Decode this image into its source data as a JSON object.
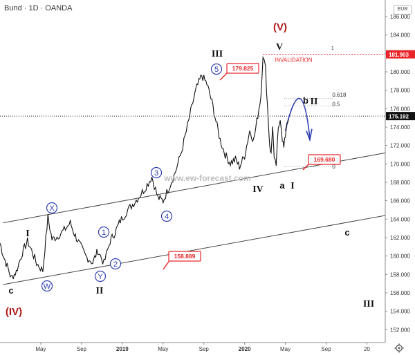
{
  "header": {
    "title": "Bund · 1D · OANDA",
    "currency": "EUR"
  },
  "chart_data": {
    "type": "line",
    "ylim": [
      150.6,
      187.8
    ],
    "y_ticks": [
      152,
      154,
      156,
      158,
      160,
      162,
      164,
      166,
      168,
      170,
      172,
      174,
      176,
      178,
      180,
      182,
      184,
      186
    ],
    "x_ticks": [
      {
        "label": "May",
        "t": 4
      },
      {
        "label": "Sep",
        "t": 8
      },
      {
        "label": "2019",
        "t": 12
      },
      {
        "label": "May",
        "t": 16
      },
      {
        "label": "Sep",
        "t": 20
      },
      {
        "label": "2020",
        "t": 24
      },
      {
        "label": "May",
        "t": 28
      },
      {
        "label": "Sep",
        "t": 32
      },
      {
        "label": "20",
        "t": 36
      }
    ],
    "xlim": [
      0,
      37.8
    ],
    "price_path": [
      [
        0,
        161.4
      ],
      [
        0.4,
        159.8
      ],
      [
        0.8,
        158.6
      ],
      [
        1.1,
        157.6
      ],
      [
        1.6,
        158.3
      ],
      [
        2.2,
        160.4
      ],
      [
        2.7,
        161.6
      ],
      [
        3.1,
        160.6
      ],
      [
        3.6,
        159.2
      ],
      [
        4.2,
        158.4
      ],
      [
        4.7,
        164.2
      ],
      [
        5.1,
        161.8
      ],
      [
        5.6,
        162.1
      ],
      [
        6.3,
        162.8
      ],
      [
        6.9,
        163.6
      ],
      [
        7.3,
        162.4
      ],
      [
        7.8,
        161.3
      ],
      [
        8.4,
        160.0
      ],
      [
        9.1,
        159.3
      ],
      [
        9.6,
        160.6
      ],
      [
        10.2,
        159.2
      ],
      [
        10.8,
        161.6
      ],
      [
        11.3,
        162.6
      ],
      [
        11.8,
        163.8
      ],
      [
        12.4,
        164.8
      ],
      [
        13.0,
        165.6
      ],
      [
        13.6,
        166.4
      ],
      [
        14.2,
        167.3
      ],
      [
        14.9,
        168.6
      ],
      [
        15.5,
        166.3
      ],
      [
        16.0,
        166.0
      ],
      [
        16.6,
        167.5
      ],
      [
        17.2,
        169.1
      ],
      [
        17.8,
        171.3
      ],
      [
        18.4,
        174.1
      ],
      [
        18.9,
        176.6
      ],
      [
        19.3,
        178.3
      ],
      [
        19.8,
        179.6
      ],
      [
        20.3,
        178.7
      ],
      [
        20.8,
        176.7
      ],
      [
        21.2,
        174.6
      ],
      [
        21.6,
        172.6
      ],
      [
        22.1,
        171.0
      ],
      [
        22.6,
        170.1
      ],
      [
        23.1,
        170.5
      ],
      [
        23.5,
        169.7
      ],
      [
        24.0,
        170.9
      ],
      [
        24.5,
        173.6
      ],
      [
        24.9,
        172.6
      ],
      [
        25.3,
        175.3
      ],
      [
        25.6,
        177.4
      ],
      [
        25.8,
        181.9
      ],
      [
        26.05,
        180.3
      ],
      [
        26.25,
        176.2
      ],
      [
        26.45,
        172.2
      ],
      [
        26.6,
        171.0
      ],
      [
        26.75,
        174.3
      ],
      [
        26.9,
        170.3
      ],
      [
        27.1,
        169.9
      ],
      [
        27.3,
        173.6
      ],
      [
        27.5,
        175.1
      ],
      [
        27.7,
        172.8
      ],
      [
        27.85,
        171.7
      ],
      [
        28.0,
        173.1
      ],
      [
        28.15,
        174.6
      ],
      [
        28.3,
        174.9
      ]
    ],
    "current_price": "175.192",
    "high_price_label": "181.903",
    "invalidation_text": "INVALIDATION",
    "fib_labels": {
      "f1": "1",
      "f0618": "0.618",
      "f05": "0.5",
      "f0": "0"
    },
    "callouts": [
      "179.825",
      "169.680",
      "158.889"
    ],
    "channel_upper": {
      "start": [
        0.3,
        163.6
      ],
      "end": [
        37.8,
        171.2
      ]
    },
    "channel_lower": {
      "start": [
        0.3,
        156.9
      ],
      "end": [
        37.8,
        164.4
      ]
    },
    "wave_labels": {
      "IV_big": "(IV)",
      "V_big": "(V)",
      "c_low": "c",
      "I": "I",
      "II": "II",
      "III": "III",
      "IV": "IV",
      "V": "V",
      "a": "a",
      "b": "b",
      "c": "c",
      "I_new": "I",
      "II_new": "II",
      "III_new": "III",
      "X": "X",
      "W": "W",
      "Y": "Y",
      "1": "1",
      "2": "2",
      "3": "3",
      "4": "4",
      "5": "5"
    },
    "watermark": "www.ew-forecast.com",
    "colors": {
      "accent_red": "#e8262a",
      "wave_blue": "#2f3fb0",
      "bg": "#ffffff",
      "price": "#111111"
    }
  }
}
